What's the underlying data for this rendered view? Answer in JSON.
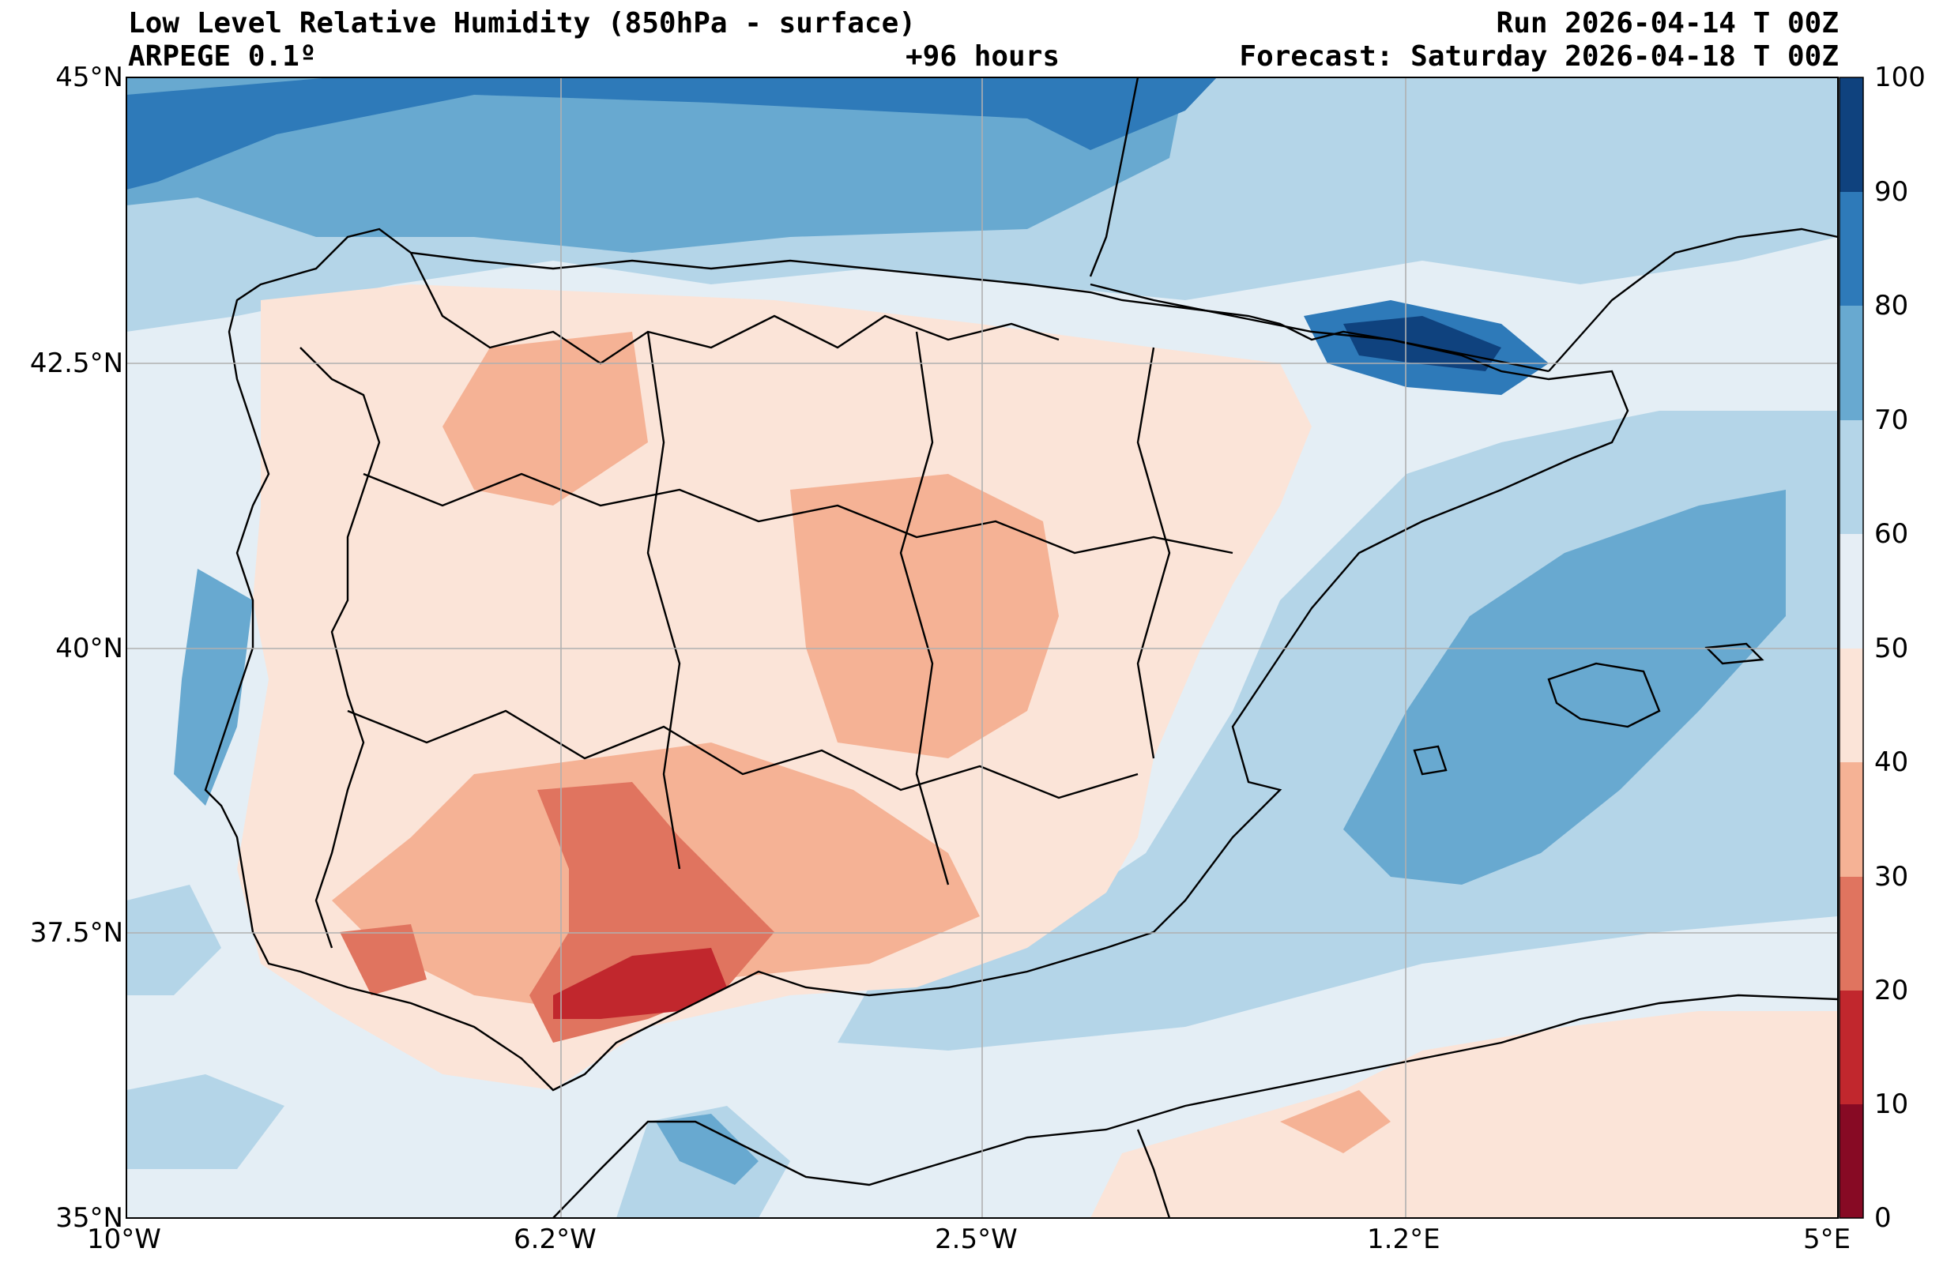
{
  "header": {
    "title_left": "Low Level Relative Humidity (850hPa - surface)",
    "model": "ARPEGE 0.1º",
    "lead_time": "+96 hours",
    "run": "Run 2026-04-14 T 00Z",
    "forecast": "Forecast: Saturday 2026-04-18 T 00Z"
  },
  "axes": {
    "lat_labels": [
      "45°N",
      "42.5°N",
      "40°N",
      "37.5°N",
      "35°N"
    ],
    "lon_labels": [
      "10°W",
      "6.2°W",
      "2.5°W",
      "1.2°E",
      "5°E"
    ]
  },
  "colorbar": {
    "levels": [
      "0",
      "10",
      "20",
      "30",
      "40",
      "50",
      "60",
      "70",
      "80",
      "90",
      "100"
    ],
    "colors": [
      "#870a24",
      "#c1272d",
      "#e0745f",
      "#f5b295",
      "#fbe4d8",
      "#e6eef5",
      "#b4d5e8",
      "#68a9d0",
      "#2e7ab9",
      "#0f427e"
    ]
  },
  "map": {
    "colors": {
      "ocean": "#e4eef5",
      "land_dry": "#fbe4d8",
      "mid_dry": "#f5b295",
      "dry": "#e0745f",
      "very_dry": "#c1272d",
      "humid": "#b4d5e8",
      "more_humid": "#68a9d0",
      "very_humid": "#2e7ab9",
      "saturated": "#0f427e",
      "grid": "#b0b0b0",
      "borders": "#000000"
    }
  }
}
